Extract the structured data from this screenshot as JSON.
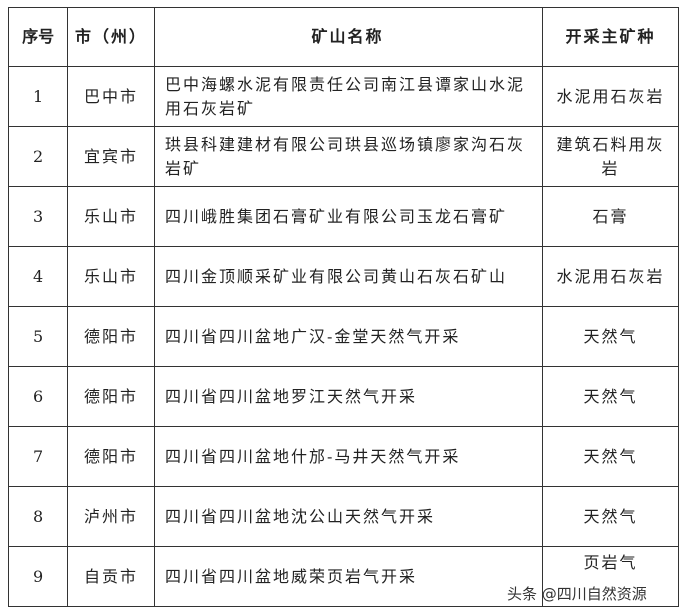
{
  "table": {
    "headers": [
      "序号",
      "市（州）",
      "矿山名称",
      "开采主矿种"
    ],
    "rows": [
      {
        "no": "1",
        "city": "巴中市",
        "mine": "巴中海螺水泥有限责任公司南江县谭家山水泥用石灰岩矿",
        "mineral": "水泥用石灰岩"
      },
      {
        "no": "2",
        "city": "宜宾市",
        "mine": "珙县科建建材有限公司珙县巡场镇廖家沟石灰岩矿",
        "mineral": "建筑石料用灰岩"
      },
      {
        "no": "3",
        "city": "乐山市",
        "mine": "四川峨胜集团石膏矿业有限公司玉龙石膏矿",
        "mineral": "石膏"
      },
      {
        "no": "4",
        "city": "乐山市",
        "mine": "四川金顶顺采矿业有限公司黄山石灰石矿山",
        "mineral": "水泥用石灰岩"
      },
      {
        "no": "5",
        "city": "德阳市",
        "mine": "四川省四川盆地广汉-金堂天然气开采",
        "mineral": "天然气"
      },
      {
        "no": "6",
        "city": "德阳市",
        "mine": "四川省四川盆地罗江天然气开采",
        "mineral": "天然气"
      },
      {
        "no": "7",
        "city": "德阳市",
        "mine": "四川省四川盆地什邡-马井天然气开采",
        "mineral": "天然气"
      },
      {
        "no": "8",
        "city": "泸州市",
        "mine": "四川省四川盆地沈公山天然气开采",
        "mineral": "天然气"
      },
      {
        "no": "9",
        "city": "自贡市",
        "mine": "四川省四川盆地威荣页岩气开采",
        "mineral": "页岩气"
      }
    ]
  },
  "watermark": "头条 @四川自然资源"
}
